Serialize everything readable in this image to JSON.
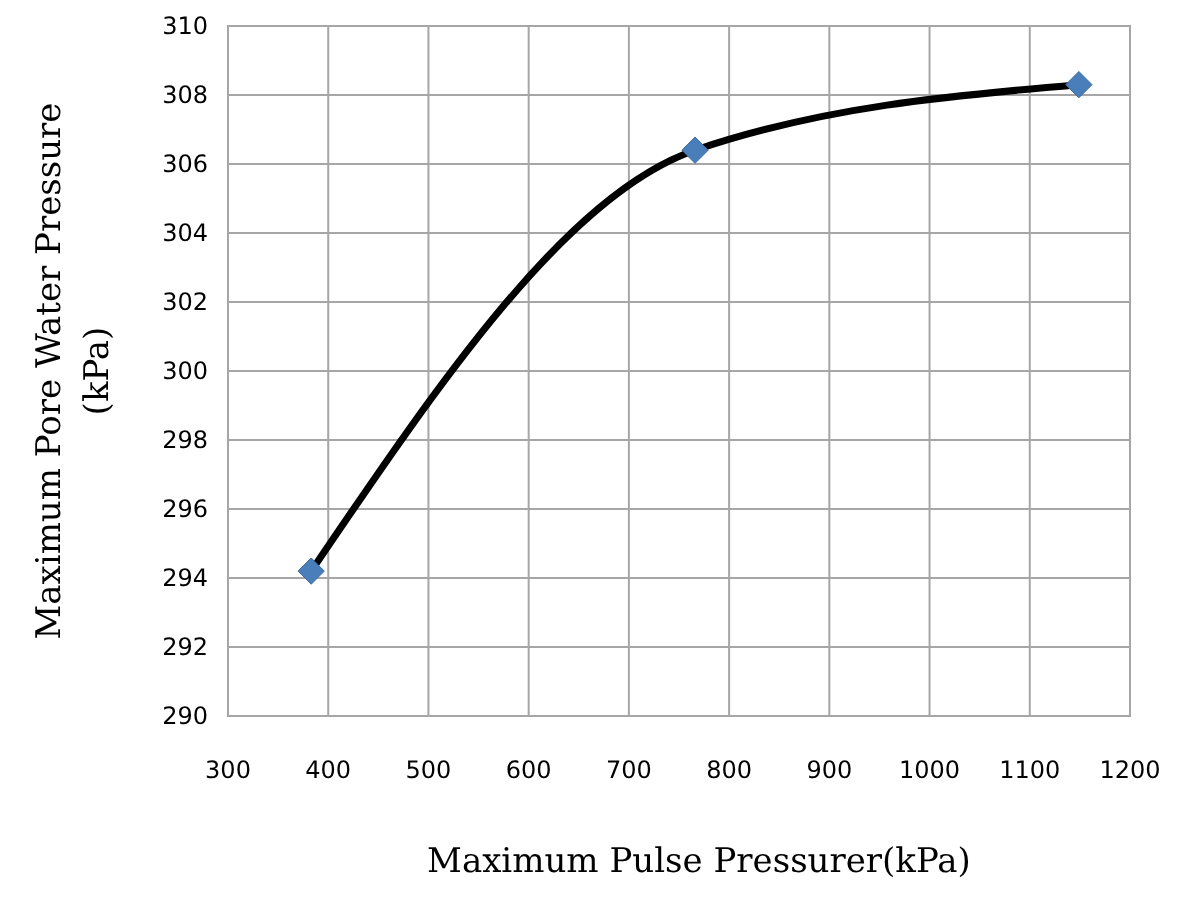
{
  "chart_data": {
    "type": "line",
    "xlabel": "Maximum Pulse Pressurer(kPa)",
    "ylabel": "Maximum Pore Water Pressure (kPa)",
    "x": [
      383,
      766,
      1149
    ],
    "series": [
      {
        "color": "#000000",
        "values": [
          294.2,
          306.4,
          308.3
        ]
      }
    ],
    "xlim": [
      300,
      1200
    ],
    "xticks": [
      300,
      400,
      500,
      600,
      700,
      800,
      900,
      1000,
      1100,
      1200
    ],
    "ylim": [
      290,
      310
    ],
    "yticks": [
      290,
      292,
      294,
      296,
      298,
      300,
      302,
      304,
      306,
      308,
      310
    ],
    "grid": true,
    "marker": "diamond",
    "line_style": "solid"
  }
}
